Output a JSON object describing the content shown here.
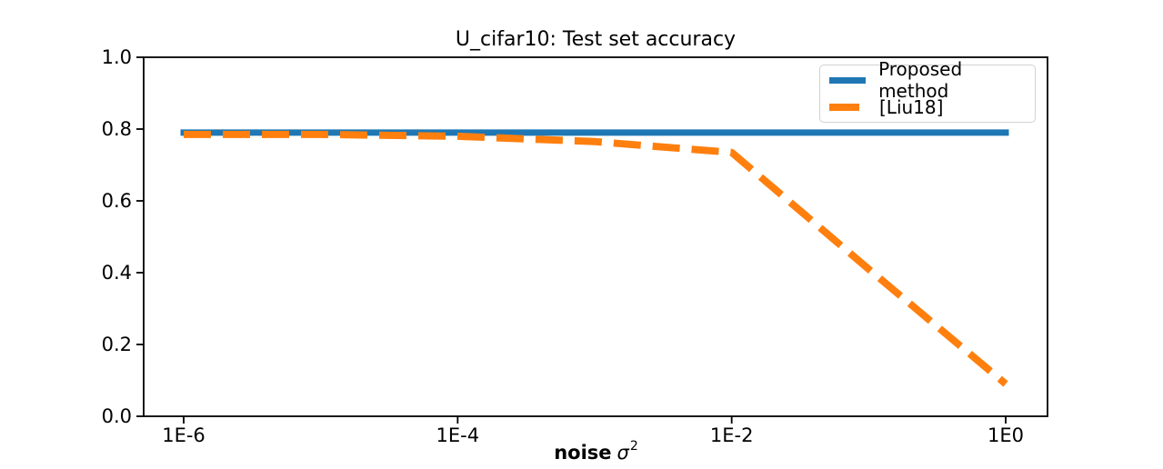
{
  "title": "U_cifar10: Test set accuracy",
  "xlabel": {
    "word": "noise",
    "symbol": "σ",
    "exponent": "2"
  },
  "legend": {
    "position": "upper right",
    "items": [
      {
        "label": "Proposed method",
        "color": "#1f77b4",
        "style": "solid"
      },
      {
        "label": "[Liu18]",
        "color": "#ff7f0e",
        "style": "dashed"
      }
    ]
  },
  "colors": {
    "proposed_blue": "#1f77b4",
    "liu18_orange": "#ff7f0e",
    "axis": "#000000",
    "legend_border": "#d2d2d2",
    "background": "#ffffff"
  },
  "chart_data": {
    "type": "line",
    "title": "U_cifar10: Test set accuracy",
    "xlabel": "noise σ²",
    "ylabel": "",
    "xscale": "log",
    "grid": false,
    "legend_position": "upper right",
    "x": [
      1e-06,
      1e-05,
      0.0001,
      0.001,
      0.01,
      0.1,
      1.0
    ],
    "series": [
      {
        "name": "Proposed method",
        "color": "#1f77b4",
        "style": "solid",
        "values": [
          0.79,
          0.79,
          0.79,
          0.79,
          0.79,
          0.79,
          0.79
        ]
      },
      {
        "name": "[Liu18]",
        "color": "#ff7f0e",
        "style": "dashed",
        "values": [
          0.785,
          0.785,
          0.78,
          0.765,
          0.735,
          0.41,
          0.09
        ]
      }
    ],
    "xticks": {
      "values": [
        1e-06,
        0.0001,
        0.01,
        1.0
      ],
      "labels": [
        "1E-6",
        "1E-4",
        "1E-2",
        "1E0"
      ]
    },
    "yticks": {
      "values": [
        0.0,
        0.2,
        0.4,
        0.6,
        0.8,
        1.0
      ],
      "labels": [
        "0.0",
        "0.2",
        "0.4",
        "0.6",
        "0.8",
        "1.0"
      ]
    },
    "ylim": [
      0.0,
      1.0
    ],
    "xlim": [
      1e-06,
      1.0
    ]
  }
}
